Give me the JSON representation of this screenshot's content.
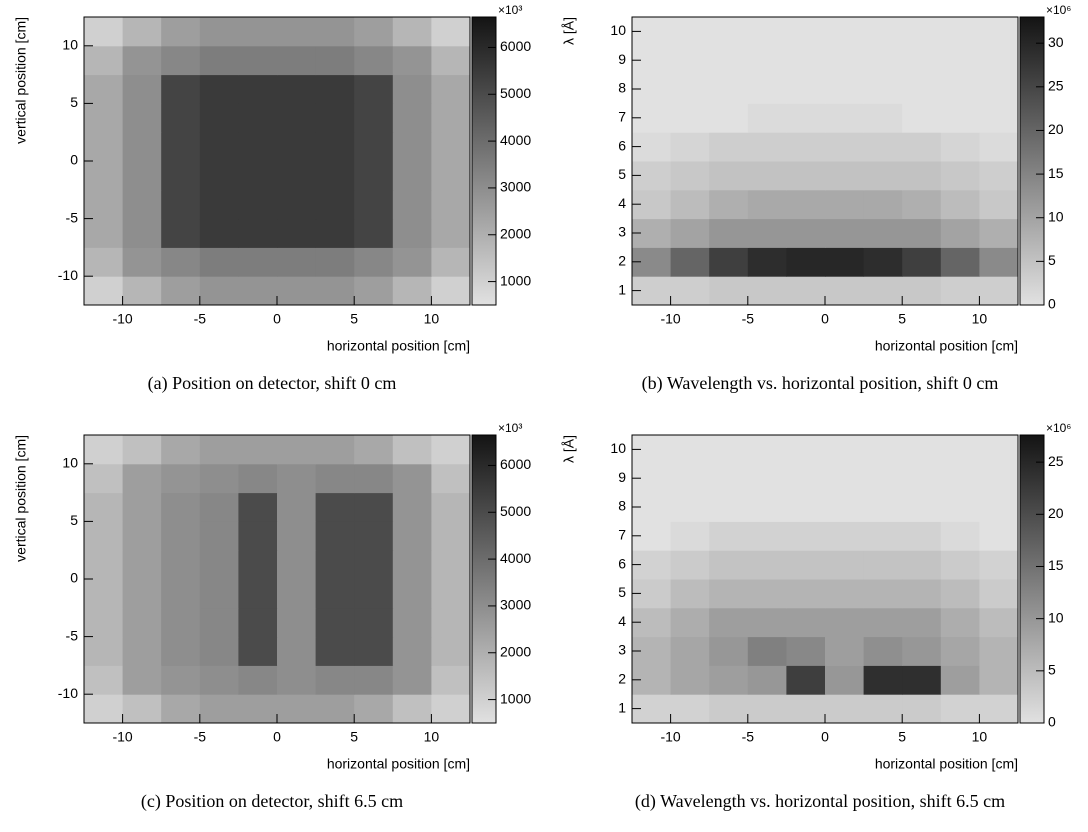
{
  "chart_data": [
    {
      "type": "heatmap",
      "xlabel": "horizontal position [cm]",
      "ylabel": "vertical position [cm]",
      "caption": "(a) Position on detector, shift 0 cm",
      "z_multiplier": "×10³",
      "xlim": [
        -12.5,
        12.5
      ],
      "ylim": [
        -12.5,
        12.5
      ],
      "xticks": [
        -10,
        -5,
        0,
        5,
        10
      ],
      "yticks": [
        -10,
        -5,
        0,
        5,
        10
      ],
      "zlim": [
        500,
        6650
      ],
      "zticks": [
        1000,
        2000,
        3000,
        4000,
        5000,
        6000
      ],
      "xbins": [
        -12.5,
        -10,
        -7.5,
        -5,
        -2.5,
        0,
        2.5,
        5,
        7.5,
        10,
        12.5
      ],
      "ybins": [
        -12.5,
        -10,
        -7.5,
        -5,
        -2.5,
        0,
        2.5,
        5,
        7.5,
        10,
        12.5
      ],
      "z": [
        [
          1000,
          1800,
          2500,
          2800,
          2800,
          2800,
          2800,
          2500,
          1800,
          1000
        ],
        [
          1800,
          2800,
          3200,
          3500,
          3500,
          3500,
          3500,
          3200,
          2800,
          1800
        ],
        [
          2200,
          3000,
          5200,
          5500,
          5500,
          5500,
          5500,
          5200,
          3000,
          2200
        ],
        [
          2200,
          3000,
          5200,
          5500,
          5500,
          5500,
          5500,
          5200,
          3000,
          2200
        ],
        [
          2200,
          3000,
          5200,
          5500,
          5500,
          5500,
          5500,
          5200,
          3000,
          2200
        ],
        [
          2200,
          3000,
          5200,
          5500,
          5500,
          5500,
          5500,
          5200,
          3000,
          2200
        ],
        [
          2200,
          3000,
          5200,
          5500,
          5500,
          5500,
          5500,
          5200,
          3000,
          2200
        ],
        [
          2200,
          3000,
          5200,
          5500,
          5500,
          5500,
          5500,
          5200,
          3000,
          2200
        ],
        [
          1800,
          2800,
          3200,
          3500,
          3500,
          3500,
          3500,
          3200,
          2800,
          1800
        ],
        [
          1000,
          1800,
          2500,
          2800,
          2800,
          2800,
          2800,
          2500,
          1800,
          1000
        ]
      ]
    },
    {
      "type": "heatmap",
      "xlabel": "horizontal position [cm]",
      "ylabel": "λ [Å]",
      "caption": "(b) Wavelength vs. horizontal position, shift 0 cm",
      "z_multiplier": "×10⁶",
      "xlim": [
        -12.5,
        12.5
      ],
      "ylim": [
        0.5,
        10.5
      ],
      "xticks": [
        -10,
        -5,
        0,
        5,
        10
      ],
      "yticks": [
        1,
        2,
        3,
        4,
        5,
        6,
        7,
        8,
        9,
        10
      ],
      "zlim": [
        0,
        33
      ],
      "zticks": [
        0,
        5,
        10,
        15,
        20,
        25,
        30
      ],
      "xbins": [
        -12.5,
        -10,
        -7.5,
        -5,
        -2.5,
        0,
        2.5,
        5,
        7.5,
        10,
        12.5
      ],
      "ybins": [
        0.5,
        1.5,
        2.5,
        3.5,
        4.5,
        5.5,
        6.5,
        7.5,
        8.5,
        9.5,
        10.5
      ],
      "z": [
        [
          3,
          3,
          4,
          4,
          4,
          4,
          4,
          4,
          3,
          3
        ],
        [
          14,
          20,
          26,
          29,
          30,
          30,
          29,
          26,
          20,
          14
        ],
        [
          8,
          10,
          12,
          12,
          12,
          12,
          12,
          12,
          10,
          8
        ],
        [
          4,
          6,
          8,
          9,
          9,
          9,
          9,
          8,
          6,
          4
        ],
        [
          3,
          4,
          5,
          5,
          5,
          5,
          5,
          5,
          4,
          3
        ],
        [
          1,
          2,
          3,
          3,
          3,
          3,
          3,
          3,
          2,
          1
        ],
        [
          0,
          0,
          0,
          1,
          1,
          1,
          1,
          0,
          0,
          0
        ],
        [
          0,
          0,
          0,
          0,
          0,
          0,
          0,
          0,
          0,
          0
        ],
        [
          0,
          0,
          0,
          0,
          0,
          0,
          0,
          0,
          0,
          0
        ],
        [
          0,
          0,
          0,
          0,
          0,
          0,
          0,
          0,
          0,
          0
        ]
      ]
    },
    {
      "type": "heatmap",
      "xlabel": "horizontal position [cm]",
      "ylabel": "vertical position [cm]",
      "caption": "(c) Position on detector, shift 6.5 cm",
      "z_multiplier": "×10³",
      "xlim": [
        -12.5,
        12.5
      ],
      "ylim": [
        -12.5,
        12.5
      ],
      "xticks": [
        -10,
        -5,
        0,
        5,
        10
      ],
      "yticks": [
        -10,
        -5,
        0,
        5,
        10
      ],
      "zlim": [
        500,
        6650
      ],
      "zticks": [
        1000,
        2000,
        3000,
        4000,
        5000,
        6000
      ],
      "xbins": [
        -12.5,
        -10,
        -7.5,
        -5,
        -2.5,
        0,
        2.5,
        5,
        7.5,
        10,
        12.5
      ],
      "ybins": [
        -12.5,
        -10,
        -7.5,
        -5,
        -2.5,
        0,
        2.5,
        5,
        7.5,
        10,
        12.5
      ],
      "z": [
        [
          1000,
          1500,
          2200,
          2500,
          2500,
          2500,
          2500,
          2200,
          1500,
          1000
        ],
        [
          1500,
          2500,
          2800,
          3000,
          3200,
          3000,
          3200,
          3200,
          2800,
          1500
        ],
        [
          1800,
          2500,
          3000,
          3200,
          5000,
          3000,
          5000,
          5000,
          2800,
          1800
        ],
        [
          1800,
          2500,
          3000,
          3200,
          5000,
          3000,
          5000,
          5000,
          2800,
          1800
        ],
        [
          1800,
          2500,
          3000,
          3200,
          5000,
          3000,
          5000,
          5000,
          2800,
          1800
        ],
        [
          1800,
          2500,
          3000,
          3200,
          5000,
          3000,
          5000,
          5000,
          2800,
          1800
        ],
        [
          1800,
          2500,
          3000,
          3200,
          5000,
          3000,
          5000,
          5000,
          2800,
          1800
        ],
        [
          1800,
          2500,
          3000,
          3200,
          5000,
          3000,
          5000,
          5000,
          2800,
          1800
        ],
        [
          1500,
          2500,
          2800,
          3000,
          3200,
          3000,
          3200,
          3200,
          2800,
          1500
        ],
        [
          1000,
          1500,
          2200,
          2500,
          2500,
          2500,
          2500,
          2200,
          1500,
          1000
        ]
      ]
    },
    {
      "type": "heatmap",
      "xlabel": "horizontal position [cm]",
      "ylabel": "λ [Å]",
      "caption": "(d) Wavelength vs. horizontal position, shift 6.5 cm",
      "z_multiplier": "×10⁶",
      "xlim": [
        -12.5,
        12.5
      ],
      "ylim": [
        0.5,
        10.5
      ],
      "xticks": [
        -10,
        -5,
        0,
        5,
        10
      ],
      "yticks": [
        1,
        2,
        3,
        4,
        5,
        6,
        7,
        8,
        9,
        10
      ],
      "zlim": [
        0,
        27.6
      ],
      "zticks": [
        0,
        5,
        10,
        15,
        20,
        25
      ],
      "xbins": [
        -12.5,
        -10,
        -7.5,
        -5,
        -2.5,
        0,
        2.5,
        5,
        7.5,
        10,
        12.5
      ],
      "ybins": [
        0.5,
        1.5,
        2.5,
        3.5,
        4.5,
        5.5,
        6.5,
        7.5,
        8.5,
        9.5,
        10.5
      ],
      "z": [
        [
          2,
          2,
          3,
          3,
          3,
          3,
          3,
          3,
          2,
          2
        ],
        [
          6,
          8,
          9,
          10,
          22,
          10,
          24,
          24,
          9,
          6
        ],
        [
          6,
          8,
          10,
          13,
          12,
          9,
          11,
          10,
          8,
          6
        ],
        [
          5,
          7,
          9,
          9,
          9,
          9,
          9,
          9,
          7,
          5
        ],
        [
          3,
          5,
          6,
          6,
          6,
          6,
          6,
          6,
          5,
          3
        ],
        [
          2,
          3,
          4,
          4,
          4,
          4,
          4,
          4,
          3,
          2
        ],
        [
          0,
          1,
          2,
          2,
          2,
          2,
          2,
          2,
          1,
          0
        ],
        [
          0,
          0,
          0,
          0,
          0,
          0,
          0,
          0,
          0,
          0
        ],
        [
          0,
          0,
          0,
          0,
          0,
          0,
          0,
          0,
          0,
          0
        ],
        [
          0,
          0,
          0,
          0,
          0,
          0,
          0,
          0,
          0,
          0
        ]
      ]
    }
  ]
}
